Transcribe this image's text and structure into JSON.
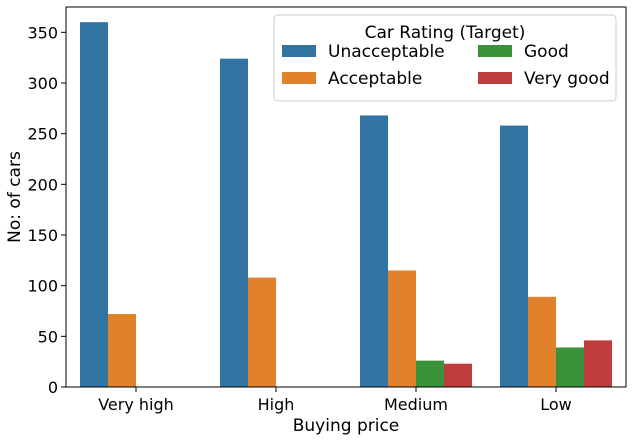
{
  "chart_data": {
    "type": "bar",
    "xlabel": "Buying price",
    "ylabel": "No: of cars",
    "categories": [
      "Very high",
      "High",
      "Medium",
      "Low"
    ],
    "ylim": [
      0,
      375
    ],
    "yticks": [
      0,
      50,
      100,
      150,
      200,
      250,
      300,
      350
    ],
    "grid": false,
    "legend": {
      "title": "Car Rating (Target)",
      "placement": "top-right",
      "columns": 2
    },
    "series": [
      {
        "name": "Unacceptable",
        "color": "#3274a1",
        "values": [
          360,
          324,
          268,
          258
        ]
      },
      {
        "name": "Acceptable",
        "color": "#e1812c",
        "values": [
          72,
          108,
          115,
          89
        ]
      },
      {
        "name": "Good",
        "color": "#3a923a",
        "values": [
          0,
          0,
          26,
          39
        ]
      },
      {
        "name": "Very good",
        "color": "#c03d3e",
        "values": [
          0,
          0,
          23,
          46
        ]
      }
    ]
  }
}
